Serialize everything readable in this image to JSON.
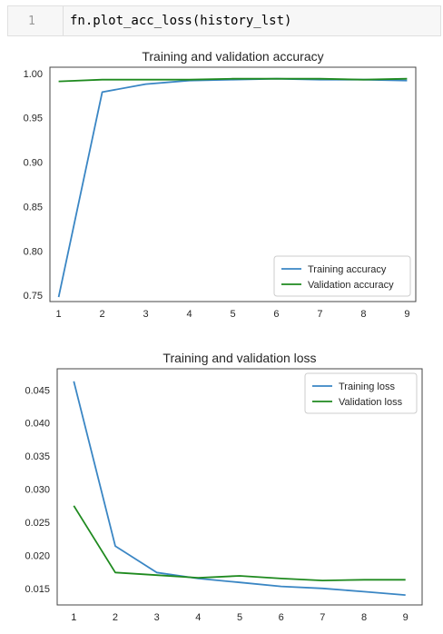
{
  "code_cell": {
    "prompt": "1",
    "code": "fn.plot_acc_loss(history_lst)"
  },
  "chart_data": [
    {
      "type": "line",
      "title": "Training and validation accuracy",
      "x": [
        1,
        2,
        3,
        4,
        5,
        6,
        7,
        8,
        9
      ],
      "x_ticks": [
        "1",
        "2",
        "3",
        "4",
        "5",
        "6",
        "7",
        "8",
        "9"
      ],
      "y_ticks": [
        "0.75",
        "0.80",
        "0.85",
        "0.90",
        "0.95",
        "1.00"
      ],
      "xlim": [
        0.8,
        9.2
      ],
      "ylim": [
        0.743,
        1.007
      ],
      "grid": false,
      "legend": "lower-right",
      "series": [
        {
          "name": "Training accuracy",
          "color": "#3a86c4",
          "values": [
            0.748,
            0.979,
            0.988,
            0.992,
            0.993,
            0.994,
            0.993,
            0.993,
            0.992
          ]
        },
        {
          "name": "Validation accuracy",
          "color": "#1f8a1f",
          "values": [
            0.991,
            0.993,
            0.993,
            0.993,
            0.994,
            0.994,
            0.994,
            0.993,
            0.994
          ]
        }
      ]
    },
    {
      "type": "line",
      "title": "Training and validation loss",
      "x": [
        1,
        2,
        3,
        4,
        5,
        6,
        7,
        8,
        9
      ],
      "x_ticks": [
        "1",
        "2",
        "3",
        "4",
        "5",
        "6",
        "7",
        "8",
        "9"
      ],
      "y_ticks": [
        "0.015",
        "0.020",
        "0.025",
        "0.030",
        "0.035",
        "0.040",
        "0.045"
      ],
      "xlim": [
        0.6,
        9.4
      ],
      "ylim": [
        0.0125,
        0.0482
      ],
      "grid": false,
      "legend": "upper-right",
      "series": [
        {
          "name": "Training loss",
          "color": "#3a86c4",
          "values": [
            0.0463,
            0.0214,
            0.0174,
            0.0165,
            0.0159,
            0.0153,
            0.015,
            0.0145,
            0.014
          ]
        },
        {
          "name": "Validation loss",
          "color": "#1f8a1f",
          "values": [
            0.0275,
            0.0174,
            0.017,
            0.0166,
            0.0169,
            0.0165,
            0.0162,
            0.0163,
            0.0163
          ]
        }
      ]
    }
  ]
}
